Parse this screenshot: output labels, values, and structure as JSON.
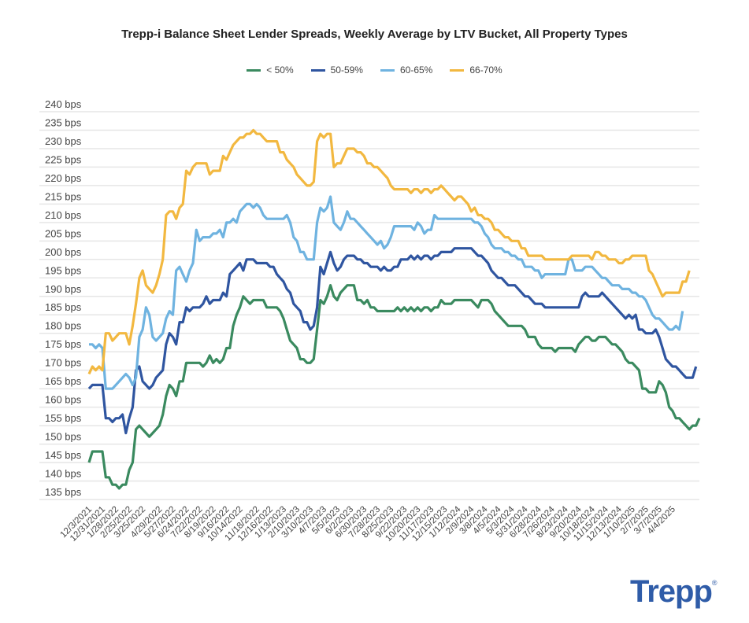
{
  "chart_data": {
    "type": "line",
    "title": "Trepp-i Balance Sheet Lender Spreads, Weekly Average by LTV Bucket, All Property Types",
    "xlabel": "",
    "ylabel": "",
    "ylim": [
      135,
      240
    ],
    "y_step": 5,
    "y_tick_suffix": " bps",
    "grid": true,
    "legend_position": "top-center",
    "x_start": "12/3/2021",
    "x_end": "4/4/2025",
    "x_tick_labels": [
      "12/3/2021",
      "12/31/2021",
      "1/28/2022",
      "2/25/2022",
      "3/25/2022",
      "4/29/2022",
      "5/27/2022",
      "6/24/2022",
      "7/22/2022",
      "8/19/2022",
      "9/16/2022",
      "10/14/2022",
      "11/18/2022",
      "12/16/2022",
      "1/13/2023",
      "2/10/2023",
      "3/10/2023",
      "4/7/2023",
      "5/5/2023",
      "6/2/2023",
      "6/30/2023",
      "7/28/2023",
      "8/25/2023",
      "9/22/2023",
      "10/20/2023",
      "11/17/2023",
      "12/15/2023",
      "1/12/2024",
      "2/9/2024",
      "3/8/2024",
      "4/5/2024",
      "5/3/2024",
      "5/31/2024",
      "6/28/2024",
      "7/26/2024",
      "8/23/2024",
      "9/20/2024",
      "10/18/2024",
      "11/15/2024",
      "12/13/2024",
      "1/10/2025",
      "2/7/2025",
      "3/7/2025",
      "4/4/2025"
    ],
    "x_tick_week_index": [
      0,
      4,
      8,
      12,
      16,
      21,
      25,
      29,
      33,
      37,
      41,
      45,
      50,
      54,
      58,
      62,
      66,
      70,
      74,
      78,
      82,
      86,
      90,
      94,
      98,
      102,
      106,
      110,
      114,
      118,
      122,
      126,
      130,
      134,
      138,
      142,
      146,
      150,
      154,
      158,
      162,
      166,
      170,
      174
    ],
    "series": [
      {
        "name": "< 50%",
        "color": "#3a8a5f",
        "values": [
          145,
          148,
          148,
          148,
          148,
          141,
          141,
          139,
          139,
          138,
          139,
          139,
          143,
          145,
          154,
          155,
          154,
          153,
          152,
          153,
          154,
          155,
          158,
          163,
          166,
          165,
          163,
          167,
          167,
          172,
          172,
          172,
          172,
          172,
          171,
          172,
          174,
          172,
          173,
          172,
          173,
          176,
          176,
          182,
          185,
          187,
          190,
          189,
          188,
          189,
          189,
          189,
          189,
          187,
          187,
          187,
          187,
          186,
          184,
          181,
          178,
          177,
          176,
          173,
          173,
          172,
          172,
          173,
          181,
          189,
          188,
          190,
          193,
          190,
          189,
          191,
          192,
          193,
          193,
          193,
          189,
          189,
          188,
          189,
          187,
          187,
          186,
          186,
          186,
          186,
          186,
          186,
          187,
          186,
          187,
          186,
          187,
          186,
          187,
          186,
          187,
          187,
          186,
          187,
          187,
          189,
          188,
          188,
          188,
          189,
          189,
          189,
          189,
          189,
          189,
          188,
          187,
          189,
          189,
          189,
          188,
          186,
          185,
          184,
          183,
          182,
          182,
          182,
          182,
          182,
          181,
          179,
          179,
          179,
          177,
          176,
          176,
          176,
          176,
          175,
          176,
          176,
          176,
          176,
          176,
          175,
          177,
          178,
          179,
          179,
          178,
          178,
          179,
          179,
          179,
          178,
          177,
          177,
          176,
          175,
          173,
          172,
          172,
          171,
          170,
          165,
          165,
          164,
          164,
          164,
          167,
          166,
          164,
          160,
          159,
          157,
          157,
          156,
          155,
          154,
          155,
          155,
          157
        ]
      },
      {
        "name": "50-59%",
        "color": "#2f55a0",
        "values": [
          165,
          166,
          166,
          166,
          166,
          157,
          157,
          156,
          157,
          157,
          158,
          153,
          157,
          160,
          170,
          171,
          167,
          166,
          165,
          166,
          168,
          169,
          170,
          177,
          180,
          179,
          177,
          183,
          183,
          187,
          186,
          187,
          187,
          187,
          188,
          190,
          188,
          189,
          189,
          189,
          191,
          190,
          196,
          197,
          198,
          199,
          197,
          200,
          200,
          200,
          199,
          199,
          199,
          199,
          198,
          198,
          196,
          195,
          194,
          192,
          191,
          188,
          187,
          186,
          183,
          183,
          181,
          182,
          187,
          198,
          196,
          199,
          202,
          199,
          197,
          198,
          200,
          201,
          201,
          201,
          200,
          200,
          199,
          199,
          198,
          198,
          198,
          197,
          198,
          197,
          197,
          198,
          198,
          200,
          200,
          200,
          201,
          200,
          201,
          200,
          201,
          201,
          200,
          201,
          201,
          202,
          202,
          202,
          202,
          203,
          203,
          203,
          203,
          203,
          203,
          202,
          201,
          201,
          200,
          199,
          197,
          196,
          195,
          195,
          194,
          193,
          193,
          193,
          192,
          191,
          190,
          190,
          189,
          188,
          188,
          188,
          187,
          187,
          187,
          187,
          187,
          187,
          187,
          187,
          187,
          187,
          187,
          190,
          191,
          190,
          190,
          190,
          190,
          191,
          190,
          189,
          188,
          187,
          186,
          185,
          184,
          185,
          184,
          185,
          181,
          181,
          180,
          180,
          180,
          181,
          179,
          176,
          173,
          172,
          171,
          171,
          170,
          169,
          168,
          168,
          168,
          171
        ]
      },
      {
        "name": "60-65%",
        "color": "#6fb3e0",
        "values": [
          177,
          177,
          176,
          177,
          176,
          165,
          165,
          165,
          166,
          167,
          168,
          169,
          168,
          166,
          168,
          179,
          181,
          187,
          185,
          179,
          178,
          179,
          180,
          184,
          186,
          185,
          197,
          198,
          196,
          194,
          197,
          199,
          208,
          205,
          206,
          206,
          206,
          207,
          207,
          208,
          206,
          210,
          210,
          211,
          210,
          213,
          214,
          215,
          215,
          214,
          215,
          214,
          212,
          211,
          211,
          211,
          211,
          211,
          211,
          212,
          210,
          206,
          205,
          202,
          202,
          200,
          200,
          200,
          210,
          214,
          213,
          214,
          217,
          210,
          209,
          208,
          210,
          213,
          211,
          211,
          210,
          209,
          208,
          207,
          206,
          205,
          204,
          205,
          203,
          204,
          206,
          209,
          209,
          209,
          209,
          209,
          209,
          208,
          210,
          209,
          207,
          208,
          208,
          212,
          211,
          211,
          211,
          211,
          211,
          211,
          211,
          211,
          211,
          211,
          211,
          210,
          210,
          209,
          207,
          206,
          204,
          203,
          203,
          203,
          202,
          202,
          201,
          201,
          200,
          200,
          198,
          198,
          198,
          197,
          197,
          195,
          196,
          196,
          196,
          196,
          196,
          196,
          196,
          200,
          200,
          197,
          197,
          197,
          198,
          198,
          198,
          197,
          196,
          195,
          195,
          194,
          193,
          193,
          193,
          192,
          192,
          192,
          191,
          191,
          190,
          190,
          189,
          187,
          185,
          184,
          184,
          183,
          182,
          181,
          181,
          182,
          181,
          186
        ]
      },
      {
        "name": "66-70%",
        "color": "#f2b840",
        "values": [
          169,
          171,
          170,
          171,
          170,
          180,
          180,
          178,
          179,
          180,
          180,
          180,
          177,
          182,
          188,
          195,
          197,
          193,
          192,
          191,
          193,
          196,
          200,
          212,
          213,
          213,
          211,
          214,
          215,
          224,
          223,
          225,
          226,
          226,
          226,
          226,
          223,
          224,
          224,
          224,
          228,
          227,
          229,
          231,
          232,
          233,
          233,
          234,
          234,
          235,
          234,
          234,
          233,
          232,
          232,
          232,
          232,
          229,
          229,
          227,
          226,
          225,
          223,
          222,
          221,
          220,
          220,
          221,
          232,
          234,
          233,
          234,
          234,
          225,
          226,
          226,
          228,
          230,
          230,
          230,
          229,
          229,
          228,
          226,
          226,
          225,
          225,
          224,
          223,
          222,
          220,
          219,
          219,
          219,
          219,
          219,
          218,
          219,
          219,
          218,
          219,
          219,
          218,
          219,
          219,
          220,
          219,
          218,
          217,
          216,
          217,
          217,
          216,
          215,
          213,
          214,
          212,
          212,
          211,
          211,
          210,
          208,
          208,
          207,
          206,
          206,
          205,
          205,
          205,
          203,
          203,
          201,
          201,
          201,
          201,
          201,
          200,
          200,
          200,
          200,
          200,
          200,
          200,
          200,
          201,
          201,
          201,
          201,
          201,
          201,
          200,
          202,
          202,
          201,
          201,
          200,
          200,
          200,
          199,
          199,
          200,
          200,
          201,
          201,
          201,
          201,
          201,
          197,
          196,
          194,
          192,
          190,
          191,
          191,
          191,
          191,
          191,
          194,
          194,
          197
        ]
      }
    ]
  },
  "logo_text": "Trepp",
  "logo_mark": "®"
}
